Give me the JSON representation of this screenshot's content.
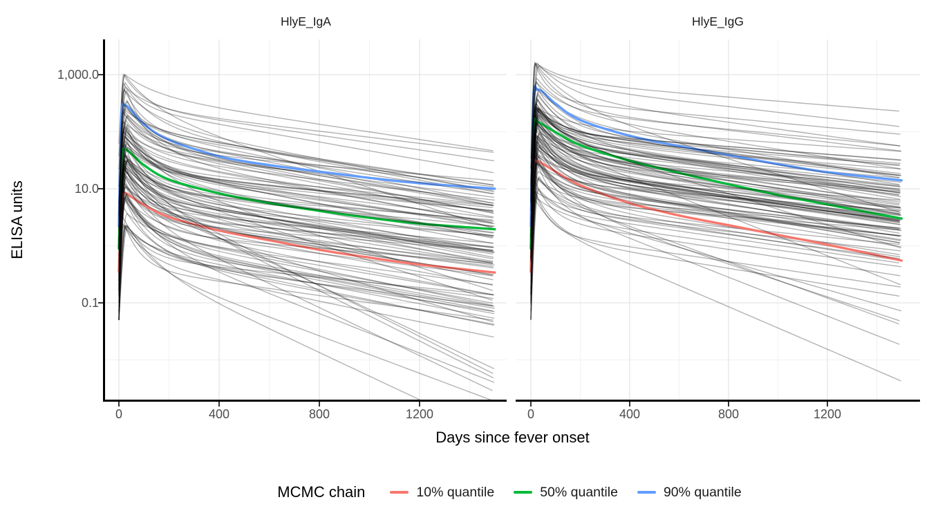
{
  "figure": {
    "ylabel": "ELISA units",
    "xlabel": "Days since fever onset",
    "legend_title": "MCMC chain"
  },
  "chart_data": {
    "type": "line",
    "title": "",
    "log_y": true,
    "x_axis": {
      "ticks": [
        0,
        400,
        800,
        1200
      ],
      "tick_labels": [
        "0",
        "400",
        "800",
        "1200"
      ],
      "minor_gridlines": [
        200,
        600,
        1000,
        1400
      ],
      "data_range_days": [
        0,
        1500
      ]
    },
    "y_axis": {
      "ticks": [
        1000,
        10,
        0.1
      ],
      "tick_labels": [
        "1,000.0",
        "10.0",
        "0.1"
      ],
      "minor_gridlines": [
        100,
        1,
        0.01
      ],
      "scale": "log10"
    },
    "grid": {
      "major_color": "#e4e4e4",
      "minor_color": "#f1f1f1"
    },
    "legend": [
      {
        "label": "10% quantile",
        "color": "#F8766D"
      },
      {
        "label": "50% quantile",
        "color": "#00BA38"
      },
      {
        "label": "90% quantile",
        "color": "#619CFF"
      }
    ],
    "ensemble_style": {
      "color": "#000000",
      "opacity": 0.3,
      "width": 1.4,
      "approx_line_count": 100
    },
    "panels": [
      {
        "title": "HlyE_IgA",
        "series": [
          {
            "name": "10% quantile",
            "color": "#F8766D",
            "points": [
              [
                0,
                0.35
              ],
              [
                10,
                5.5
              ],
              [
                25,
                8.2
              ],
              [
                50,
                7.2
              ],
              [
                100,
                5.2
              ],
              [
                200,
                3.2
              ],
              [
                400,
                1.85
              ],
              [
                600,
                1.25
              ],
              [
                800,
                0.85
              ],
              [
                1000,
                0.62
              ],
              [
                1200,
                0.47
              ],
              [
                1500,
                0.34
              ]
            ]
          },
          {
            "name": "50% quantile",
            "color": "#00BA38",
            "points": [
              [
                0,
                0.9
              ],
              [
                10,
                33
              ],
              [
                25,
                48
              ],
              [
                50,
                41
              ],
              [
                100,
                26
              ],
              [
                200,
                14.5
              ],
              [
                400,
                8.3
              ],
              [
                600,
                5.6
              ],
              [
                800,
                4.1
              ],
              [
                1000,
                3.1
              ],
              [
                1200,
                2.45
              ],
              [
                1500,
                1.95
              ]
            ]
          },
          {
            "name": "90% quantile",
            "color": "#619CFF",
            "points": [
              [
                0,
                2.2
              ],
              [
                10,
                190
              ],
              [
                25,
                285
              ],
              [
                50,
                235
              ],
              [
                100,
                135
              ],
              [
                200,
                72
              ],
              [
                400,
                37
              ],
              [
                600,
                26
              ],
              [
                800,
                20
              ],
              [
                1000,
                15.5
              ],
              [
                1200,
                12.5
              ],
              [
                1500,
                10
              ]
            ]
          }
        ],
        "ensemble": {
          "n": 100,
          "seed": 12,
          "peak_log10_mean": 1.55,
          "peak_log10_sd": 0.7,
          "peak_log10_clip": [
            0.35,
            3.0
          ],
          "baseline_offset_log10": [
            1.1,
            2.4
          ],
          "rise_days": [
            15,
            35
          ],
          "fast_drop_log10": [
            0.35,
            0.95
          ],
          "fast_tau_days": [
            60,
            150
          ],
          "slow_drop_log10_per_1000d": [
            0.35,
            0.95
          ],
          "steep_outlier_prob": 0.12,
          "steep_extra_log10": [
            0.7,
            1.7
          ]
        }
      },
      {
        "title": "HlyE_IgG",
        "series": [
          {
            "name": "10% quantile",
            "color": "#F8766D",
            "points": [
              [
                0,
                0.35
              ],
              [
                10,
                21
              ],
              [
                25,
                30
              ],
              [
                50,
                27
              ],
              [
                100,
                20
              ],
              [
                200,
                11.5
              ],
              [
                400,
                5.6
              ],
              [
                600,
                3.4
              ],
              [
                800,
                2.3
              ],
              [
                1000,
                1.55
              ],
              [
                1200,
                1.05
              ],
              [
                1500,
                0.55
              ]
            ]
          },
          {
            "name": "50% quantile",
            "color": "#00BA38",
            "points": [
              [
                0,
                0.9
              ],
              [
                10,
                105
              ],
              [
                25,
                146
              ],
              [
                50,
                132
              ],
              [
                100,
                98
              ],
              [
                200,
                58
              ],
              [
                400,
                31
              ],
              [
                600,
                19
              ],
              [
                800,
                12
              ],
              [
                1000,
                7.8
              ],
              [
                1200,
                5.3
              ],
              [
                1500,
                3.0
              ]
            ]
          },
          {
            "name": "90% quantile",
            "color": "#619CFF",
            "points": [
              [
                0,
                2.2
              ],
              [
                10,
                380
              ],
              [
                25,
                540
              ],
              [
                50,
                490
              ],
              [
                100,
                310
              ],
              [
                200,
                160
              ],
              [
                400,
                85
              ],
              [
                600,
                56
              ],
              [
                800,
                39
              ],
              [
                1000,
                27
              ],
              [
                1200,
                19.5
              ],
              [
                1500,
                14
              ]
            ]
          }
        ],
        "ensemble": {
          "n": 100,
          "seed": 99,
          "peak_log10_mean": 2.1,
          "peak_log10_sd": 0.55,
          "peak_log10_clip": [
            0.8,
            3.2
          ],
          "baseline_offset_log10": [
            1.3,
            2.6
          ],
          "rise_days": [
            15,
            35
          ],
          "fast_drop_log10": [
            0.3,
            0.8
          ],
          "fast_tau_days": [
            60,
            150
          ],
          "slow_drop_log10_per_1000d": [
            0.3,
            0.75
          ],
          "steep_outlier_prob": 0.08,
          "steep_extra_log10": [
            0.6,
            1.4
          ]
        }
      }
    ]
  }
}
